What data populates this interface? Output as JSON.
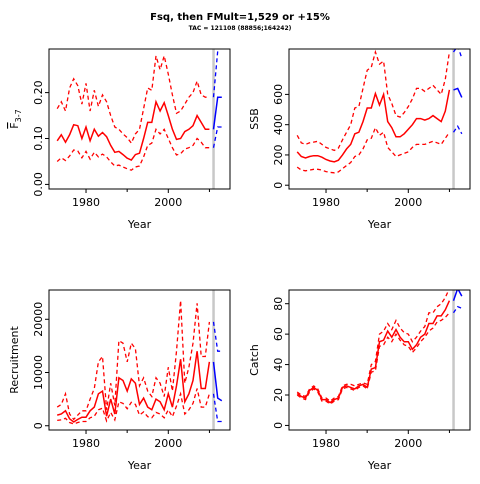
{
  "title": "Fsq, then FMult=1,529 or +15%",
  "subtitle": "TAC = 121108 (88856;164242)",
  "colors": {
    "hist": "#ff0000",
    "proj": "#0000ff",
    "vline": "#c8c8c8"
  },
  "vline_year": 2011,
  "chart_data": [
    {
      "type": "line",
      "xlabel": "Year",
      "ylabel_main": "F",
      "ylabel_sub": "3-7",
      "xlim": [
        1971,
        2015
      ],
      "ylim": [
        -0.01,
        0.295
      ],
      "xticks": [
        1980,
        2000
      ],
      "yticks": [
        0.0,
        0.1,
        0.2
      ],
      "ytick_labels": [
        "0.00",
        "0.10",
        "0.20"
      ],
      "hist": {
        "x": [
          1973,
          1974,
          1975,
          1976,
          1977,
          1978,
          1979,
          1980,
          1981,
          1982,
          1983,
          1984,
          1985,
          1986,
          1987,
          1988,
          1989,
          1990,
          1991,
          1992,
          1993,
          1994,
          1995,
          1996,
          1997,
          1998,
          1999,
          2000,
          2001,
          2002,
          2003,
          2004,
          2005,
          2006,
          2007,
          2008,
          2009,
          2010
        ],
        "mid": [
          0.095,
          0.108,
          0.092,
          0.108,
          0.13,
          0.128,
          0.1,
          0.125,
          0.095,
          0.12,
          0.105,
          0.113,
          0.104,
          0.085,
          0.07,
          0.072,
          0.065,
          0.057,
          0.053,
          0.065,
          0.068,
          0.1,
          0.135,
          0.135,
          0.18,
          0.16,
          0.178,
          0.15,
          0.12,
          0.098,
          0.1,
          0.115,
          0.12,
          0.128,
          0.15,
          0.135,
          0.12,
          0.12
        ],
        "hi": [
          0.165,
          0.18,
          0.16,
          0.21,
          0.23,
          0.215,
          0.175,
          0.22,
          0.16,
          0.205,
          0.17,
          0.195,
          0.18,
          0.15,
          0.125,
          0.12,
          0.11,
          0.102,
          0.09,
          0.11,
          0.12,
          0.165,
          0.21,
          0.205,
          0.28,
          0.25,
          0.28,
          0.24,
          0.195,
          0.155,
          0.16,
          0.175,
          0.19,
          0.2,
          0.225,
          0.195,
          0.19,
          0.19
        ],
        "lo": [
          0.05,
          0.058,
          0.052,
          0.062,
          0.075,
          0.073,
          0.058,
          0.072,
          0.055,
          0.07,
          0.06,
          0.066,
          0.06,
          0.049,
          0.04,
          0.042,
          0.038,
          0.034,
          0.031,
          0.038,
          0.04,
          0.06,
          0.085,
          0.09,
          0.12,
          0.11,
          0.12,
          0.1,
          0.08,
          0.064,
          0.067,
          0.077,
          0.08,
          0.085,
          0.1,
          0.092,
          0.08,
          0.08
        ]
      },
      "proj": {
        "x": [
          2011,
          2012,
          2013
        ],
        "mid": [
          0.12,
          0.19,
          0.19
        ],
        "hi": [
          0.19,
          0.29,
          0.3
        ],
        "lo": [
          0.08,
          0.125,
          0.125
        ]
      }
    },
    {
      "type": "line",
      "xlabel": "Year",
      "ylabel": "SSB",
      "xlim": [
        1971,
        2015
      ],
      "ylim": [
        -25,
        900
      ],
      "xticks": [
        1980,
        2000
      ],
      "yticks": [
        0,
        200,
        400,
        600
      ],
      "ytick_labels": [
        "0",
        "200",
        "400",
        "600"
      ],
      "hist": {
        "x": [
          1973,
          1974,
          1975,
          1976,
          1977,
          1978,
          1979,
          1980,
          1981,
          1982,
          1983,
          1984,
          1985,
          1986,
          1987,
          1988,
          1989,
          1990,
          1991,
          1992,
          1993,
          1994,
          1995,
          1996,
          1997,
          1998,
          1999,
          2000,
          2001,
          2002,
          2003,
          2004,
          2005,
          2006,
          2007,
          2008,
          2009,
          2010
        ],
        "mid": [
          220,
          190,
          180,
          190,
          195,
          195,
          185,
          170,
          160,
          155,
          165,
          200,
          240,
          270,
          340,
          350,
          420,
          510,
          510,
          605,
          530,
          600,
          420,
          380,
          320,
          320,
          340,
          370,
          400,
          440,
          440,
          430,
          440,
          460,
          440,
          420,
          490,
          630
        ],
        "hi": [
          330,
          280,
          270,
          280,
          285,
          290,
          270,
          250,
          240,
          230,
          245,
          300,
          350,
          400,
          510,
          520,
          640,
          760,
          780,
          880,
          800,
          820,
          600,
          540,
          460,
          450,
          480,
          520,
          570,
          640,
          640,
          620,
          640,
          660,
          630,
          600,
          700,
          880
        ],
        "lo": [
          120,
          100,
          95,
          100,
          105,
          105,
          100,
          90,
          85,
          82,
          88,
          110,
          130,
          150,
          190,
          200,
          240,
          300,
          310,
          380,
          330,
          350,
          250,
          220,
          190,
          200,
          210,
          220,
          250,
          270,
          270,
          270,
          280,
          290,
          280,
          270,
          310,
          350
        ]
      },
      "proj": {
        "x": [
          2011,
          2012,
          2013
        ],
        "mid": [
          630,
          640,
          580
        ],
        "hi": [
          880,
          920,
          840
        ],
        "lo": [
          350,
          390,
          340
        ]
      }
    },
    {
      "type": "line",
      "xlabel": "Year",
      "ylabel": "Recruitment",
      "xlim": [
        1971,
        2015
      ],
      "ylim": [
        -800,
        25500
      ],
      "xticks": [
        1980,
        2000
      ],
      "yticks": [
        0,
        10000,
        20000
      ],
      "ytick_labels": [
        "0",
        "10000",
        "20000"
      ],
      "hist": {
        "x": [
          1973,
          1974,
          1975,
          1976,
          1977,
          1978,
          1979,
          1980,
          1981,
          1982,
          1983,
          1984,
          1985,
          1986,
          1987,
          1988,
          1989,
          1990,
          1991,
          1992,
          1993,
          1994,
          1995,
          1996,
          1997,
          1998,
          1999,
          2000,
          2001,
          2002,
          2003,
          2004,
          2005,
          2006,
          2007,
          2008,
          2009,
          2010
        ],
        "mid": [
          2000,
          2200,
          2800,
          1300,
          700,
          1200,
          1600,
          1600,
          2800,
          3500,
          6000,
          6500,
          1800,
          5000,
          2200,
          9000,
          8500,
          6500,
          8800,
          8000,
          4000,
          5200,
          3500,
          3000,
          5000,
          4500,
          3000,
          6000,
          3500,
          7500,
          12500,
          4500,
          6000,
          8500,
          14000,
          7000,
          7000,
          12000
        ],
        "hi": [
          3500,
          4000,
          6000,
          2200,
          1200,
          2000,
          2800,
          2800,
          5000,
          7000,
          12000,
          13000,
          3000,
          8000,
          3800,
          16000,
          15500,
          12000,
          15500,
          14500,
          7500,
          9000,
          6500,
          5500,
          9000,
          8000,
          5500,
          11000,
          6500,
          14000,
          23500,
          8000,
          11000,
          15500,
          23000,
          13000,
          13000,
          19500
        ],
        "lo": [
          1000,
          1100,
          1400,
          600,
          350,
          600,
          800,
          800,
          1500,
          1800,
          3000,
          3300,
          900,
          2500,
          1100,
          4500,
          4200,
          3200,
          4400,
          4000,
          2000,
          2600,
          1700,
          1500,
          2500,
          2200,
          1500,
          3000,
          1700,
          3700,
          6000,
          2200,
          3000,
          4200,
          7000,
          3500,
          3500,
          6000
        ]
      },
      "proj": {
        "x": [
          2011,
          2012,
          2013
        ],
        "mid": [
          12000,
          5200,
          4700
        ],
        "hi": [
          19500,
          14000,
          14000
        ],
        "lo": [
          6000,
          800,
          800
        ]
      }
    },
    {
      "type": "line",
      "xlabel": "Year",
      "ylabel": "Catch",
      "xlim": [
        1971,
        2015
      ],
      "ylim": [
        -3,
        89
      ],
      "xticks": [
        1980,
        2000
      ],
      "yticks": [
        0,
        20,
        40,
        60,
        80
      ],
      "ytick_labels": [
        "0",
        "20",
        "40",
        "60",
        "80"
      ],
      "hist": {
        "x": [
          1973,
          1974,
          1975,
          1976,
          1977,
          1978,
          1979,
          1980,
          1981,
          1982,
          1983,
          1984,
          1985,
          1986,
          1987,
          1988,
          1989,
          1990,
          1991,
          1992,
          1993,
          1994,
          1995,
          1996,
          1997,
          1998,
          1999,
          2000,
          2001,
          2002,
          2003,
          2004,
          2005,
          2006,
          2007,
          2008,
          2009,
          2010
        ],
        "mid": [
          21,
          19,
          18,
          23,
          25,
          23,
          17,
          17,
          15,
          17,
          18,
          25,
          26,
          25,
          24,
          26,
          27,
          25,
          37,
          38,
          55,
          56,
          62,
          58,
          63,
          58,
          55,
          55,
          50,
          53,
          58,
          60,
          67,
          67,
          72,
          72,
          76,
          82
        ],
        "hi": [
          22,
          20,
          19,
          24,
          26,
          24,
          18,
          18,
          16,
          18,
          19,
          26,
          27,
          27,
          26,
          27,
          28,
          27,
          40,
          42,
          60,
          62,
          67,
          63,
          69,
          64,
          61,
          60,
          55,
          58,
          62,
          65,
          74,
          74,
          78,
          80,
          84,
          90
        ],
        "lo": [
          20,
          18,
          17,
          22,
          24,
          22,
          16,
          16,
          14,
          16,
          17,
          24,
          25,
          24,
          23,
          25,
          26,
          24,
          35,
          36,
          52,
          53,
          58,
          55,
          60,
          56,
          53,
          52,
          48,
          51,
          55,
          58,
          62,
          64,
          68,
          69,
          71,
          74
        ]
      },
      "proj": {
        "x": [
          2011,
          2012,
          2013
        ],
        "mid": [
          82,
          90,
          85
        ],
        "hi": [
          90,
          95,
          92
        ],
        "lo": [
          74,
          78,
          77
        ]
      }
    }
  ]
}
